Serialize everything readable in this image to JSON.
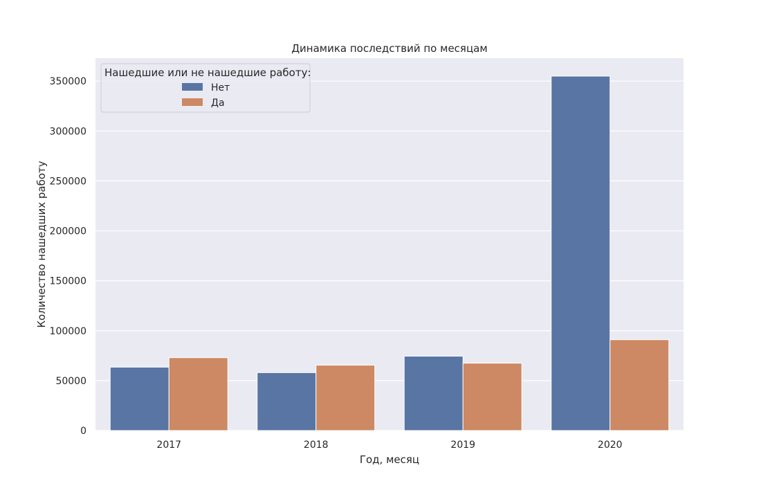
{
  "chart_data": {
    "type": "bar",
    "title": "Динамика последствий по месяцам",
    "xlabel": "Год, месяц",
    "ylabel": "Количество нашедших работу",
    "categories": [
      "2017",
      "2018",
      "2019",
      "2020"
    ],
    "series": [
      {
        "name": "Нет",
        "values": [
          63500,
          58000,
          74500,
          355000
        ]
      },
      {
        "name": "Да",
        "values": [
          73000,
          65500,
          67500,
          91000
        ]
      }
    ],
    "ylim": [
      0,
      373000
    ],
    "yticks": [
      0,
      50000,
      100000,
      150000,
      200000,
      250000,
      300000,
      350000
    ],
    "ytick_labels": [
      "0",
      "50000",
      "100000",
      "150000",
      "200000",
      "250000",
      "300000",
      "350000"
    ],
    "legend": {
      "title": "Нашедшие или не нашедшие работу:",
      "placement": "top-left"
    },
    "grid": true,
    "colors": {
      "Нет": "#5875a4",
      "Да": "#cc8963",
      "plot_background": "#eaeaf2",
      "grid": "#ffffff"
    }
  }
}
